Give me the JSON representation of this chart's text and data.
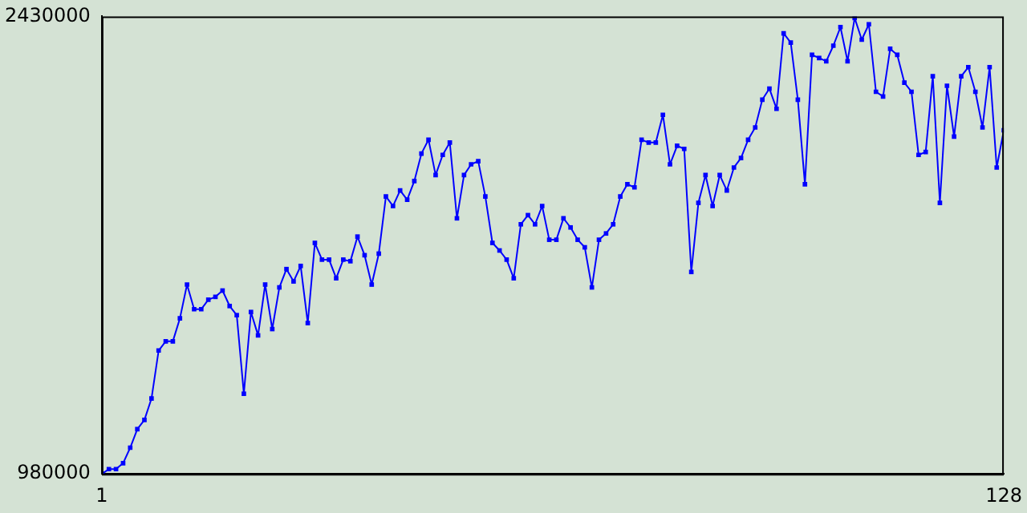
{
  "chart_data": {
    "type": "line",
    "x": [
      1,
      2,
      3,
      4,
      5,
      6,
      7,
      8,
      9,
      10,
      11,
      12,
      13,
      14,
      15,
      16,
      17,
      18,
      19,
      20,
      21,
      22,
      23,
      24,
      25,
      26,
      27,
      28,
      29,
      30,
      31,
      32,
      33,
      34,
      35,
      36,
      37,
      38,
      39,
      40,
      41,
      42,
      43,
      44,
      45,
      46,
      47,
      48,
      49,
      50,
      51,
      52,
      53,
      54,
      55,
      56,
      57,
      58,
      59,
      60,
      61,
      62,
      63,
      64,
      65,
      66,
      67,
      68,
      69,
      70,
      71,
      72,
      73,
      74,
      75,
      76,
      77,
      78,
      79,
      80,
      81,
      82,
      83,
      84,
      85,
      86,
      87,
      88,
      89,
      90,
      91,
      92,
      93,
      94,
      95,
      96,
      97,
      98,
      99,
      100,
      101,
      102,
      103,
      104,
      105,
      106,
      107,
      108,
      109,
      110,
      111,
      112,
      113,
      114,
      115,
      116,
      117,
      118,
      119,
      120,
      121,
      122,
      123,
      124,
      125,
      126,
      127,
      128
    ],
    "series": [
      {
        "color": "#0000ff",
        "values": [
          980000,
          995000,
          995000,
          1014000,
          1063000,
          1122000,
          1151000,
          1219000,
          1371000,
          1400000,
          1400000,
          1473000,
          1580000,
          1502000,
          1502000,
          1532000,
          1541000,
          1561000,
          1512000,
          1483000,
          1234000,
          1493000,
          1419000,
          1580000,
          1439000,
          1571000,
          1629000,
          1590000,
          1639000,
          1458000,
          1712000,
          1659000,
          1659000,
          1600000,
          1659000,
          1654000,
          1732000,
          1673000,
          1580000,
          1678000,
          1859000,
          1829000,
          1878000,
          1849000,
          1908000,
          1995000,
          2039000,
          1927000,
          1991000,
          2030000,
          1790000,
          1927000,
          1961000,
          1971000,
          1859000,
          1712000,
          1688000,
          1659000,
          1600000,
          1771000,
          1800000,
          1771000,
          1829000,
          1722000,
          1722000,
          1790000,
          1761000,
          1722000,
          1698000,
          1571000,
          1722000,
          1742000,
          1771000,
          1859000,
          1898000,
          1888000,
          2039000,
          2030000,
          2030000,
          2118000,
          1961000,
          2020000,
          2010000,
          1620000,
          1839000,
          1927000,
          1829000,
          1927000,
          1878000,
          1951000,
          1981000,
          2039000,
          2078000,
          2166000,
          2201000,
          2137000,
          2376000,
          2347000,
          2166000,
          1898000,
          2308000,
          2298000,
          2288000,
          2337000,
          2396000,
          2288000,
          2425000,
          2356000,
          2405000,
          2191000,
          2176000,
          2327000,
          2308000,
          2220000,
          2191000,
          1991000,
          2000000,
          2240000,
          1839000,
          2210000,
          2049000,
          2240000,
          2269000,
          2191000,
          2078000,
          2269000,
          1951000,
          2069000
        ]
      }
    ],
    "xlim": [
      1,
      128
    ],
    "xticks": [
      1,
      128
    ],
    "ylim": [
      980000,
      2430000
    ],
    "yticks": [
      980000,
      2430000
    ],
    "grid": false,
    "legend": false,
    "marker": "square",
    "line_style": "solid"
  }
}
